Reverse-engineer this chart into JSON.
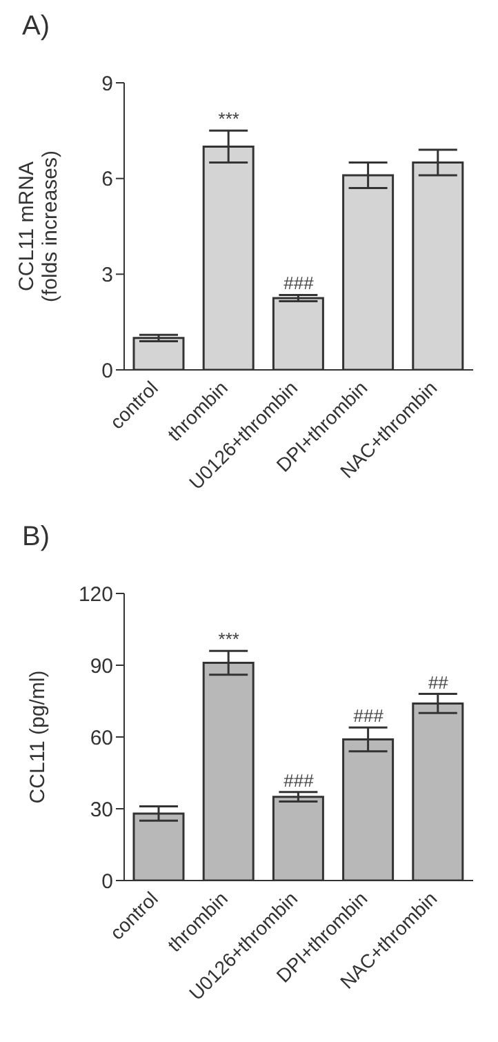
{
  "chart_data": [
    {
      "type": "bar",
      "title": "A)",
      "ylabel": "CCL11 mRNA\n(folds increases)",
      "categories": [
        "control",
        "thrombin",
        "U0126+thrombin",
        "DPI+thrombin",
        "NAC+thrombin"
      ],
      "values": [
        1.0,
        7.0,
        2.25,
        6.1,
        6.5
      ],
      "errors": [
        0.1,
        0.5,
        0.1,
        0.4,
        0.4
      ],
      "color": "#d4d4d4",
      "ylim": [
        0,
        9
      ],
      "yticks": [
        0,
        3,
        6,
        9
      ],
      "grid": false,
      "legend": false,
      "annotations": [
        {
          "text": "***",
          "x": "thrombin",
          "y": 7.5
        },
        {
          "text": "###",
          "x": "U0126+thrombin",
          "y": 2.35
        }
      ]
    },
    {
      "type": "bar",
      "title": "B)",
      "ylabel": "CCL11 (pg/ml)",
      "categories": [
        "control",
        "thrombin",
        "U0126+thrombin",
        "DPI+thrombin",
        "NAC+thrombin"
      ],
      "values": [
        28,
        91,
        35,
        59,
        74
      ],
      "errors": [
        3,
        5,
        2,
        5,
        4
      ],
      "color": "#b8b8b8",
      "ylim": [
        0,
        120
      ],
      "yticks": [
        0,
        30,
        60,
        90,
        120
      ],
      "grid": false,
      "legend": false,
      "annotations": [
        {
          "text": "***",
          "x": "thrombin",
          "y": 96
        },
        {
          "text": "###",
          "x": "U0126+thrombin",
          "y": 37
        },
        {
          "text": "###",
          "x": "DPI+thrombin",
          "y": 64
        },
        {
          "text": "##",
          "x": "NAC+thrombin",
          "y": 78
        }
      ]
    }
  ]
}
